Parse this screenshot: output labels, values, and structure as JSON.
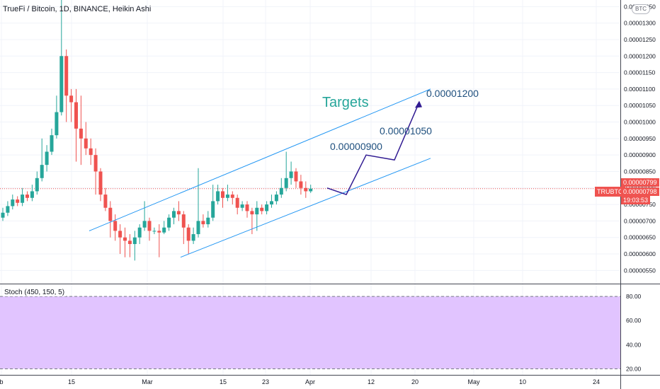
{
  "header": {
    "title": "TrueFi / Bitcoin, 1D, BINANCE, Heikin Ashi"
  },
  "currency_badge": "BTC",
  "stoch_label": "Stoch (450, 150, 5)",
  "price_panel": {
    "symbol": "TRUBTC",
    "price_upper": "0.00000799",
    "price_lower": "0.00000798",
    "countdown": "19:03:53"
  },
  "annotations": {
    "targets_label": "Targets",
    "target1": "0.00000900",
    "target2": "0.00001050",
    "target3": "0.00001200"
  },
  "colors": {
    "up": "#26a69a",
    "down": "#ef5350",
    "channel": "#2196f3",
    "projection": "#311b92",
    "targets_text": "#26a69a",
    "target_numbers": "#1e4f7e",
    "stoch_band": "#e1c4ff"
  },
  "chart_data": [
    {
      "type": "candlestick",
      "style": "Heikin Ashi",
      "interval": "1D",
      "x_labels": [
        "b",
        "15",
        "Mar",
        "15",
        "23",
        "Apr",
        "12",
        "20",
        "May",
        "10",
        "24"
      ],
      "y_ticks": [
        "0.00000550",
        "0.00000600",
        "0.00000650",
        "0.00000700",
        "0.00000750",
        "0.00000800",
        "0.00000850",
        "0.00000900",
        "0.00000950",
        "0.00001000",
        "0.00001050",
        "0.00001100",
        "0.00001150",
        "0.00001200",
        "0.00001250",
        "0.00001300",
        "0.00001350"
      ],
      "ylim": [
        5.1e-06,
        1.37e-05
      ],
      "candles": [
        [
          7.1e-06,
          7.25e-06,
          7e-06,
          7.4e-06
        ],
        [
          7.25e-06,
          7.45e-06,
          7.15e-06,
          7.6e-06
        ],
        [
          7.45e-06,
          7.65e-06,
          7.35e-06,
          7.8e-06
        ],
        [
          7.65e-06,
          7.55e-06,
          7.45e-06,
          7.75e-06
        ],
        [
          7.55e-06,
          7.8e-06,
          7.45e-06,
          8e-06
        ],
        [
          7.8e-06,
          7.7e-06,
          7.6e-06,
          7.9e-06
        ],
        [
          7.7e-06,
          7.9e-06,
          7.6e-06,
          8.1e-06
        ],
        [
          7.9e-06,
          8.3e-06,
          7.8e-06,
          8.5e-06
        ],
        [
          8.3e-06,
          8.7e-06,
          8.2e-06,
          9.5e-06
        ],
        [
          8.7e-06,
          9.1e-06,
          8.5e-06,
          9.3e-06
        ],
        [
          9.1e-06,
          9.6e-06,
          9e-06,
          9.8e-06
        ],
        [
          9.6e-06,
          1.03e-05,
          9.5e-06,
          1.08e-05
        ],
        [
          1.03e-05,
          1.2e-05,
          1.02e-05,
          1.37e-05
        ],
        [
          1.2e-05,
          1.08e-05,
          1e-05,
          1.22e-05
        ],
        [
          1.08e-05,
          1.06e-05,
          1e-05,
          1.1e-05
        ],
        [
          1.06e-05,
          9.8e-06,
          8.8e-06,
          1.1e-05
        ],
        [
          9.8e-06,
          9.5e-06,
          8.7e-06,
          1.08e-05
        ],
        [
          9.5e-06,
          9.2e-06,
          9e-06,
          1e-05
        ],
        [
          9.2e-06,
          9e-06,
          8.7e-06,
          9.5e-06
        ],
        [
          9e-06,
          8.5e-06,
          7.8e-06,
          9.2e-06
        ],
        [
          8.5e-06,
          7.8e-06,
          7.6e-06,
          8.6e-06
        ],
        [
          7.8e-06,
          7.4e-06,
          7.3e-06,
          8e-06
        ],
        [
          7.4e-06,
          7e-06,
          6.5e-06,
          7.6e-06
        ],
        [
          7e-06,
          6.7e-06,
          6.4e-06,
          7.2e-06
        ],
        [
          6.7e-06,
          6.5e-06,
          6e-06,
          6.9e-06
        ],
        [
          6.5e-06,
          6.4e-06,
          5.9e-06,
          6.8e-06
        ],
        [
          6.4e-06,
          6.3e-06,
          5.9e-06,
          6.6e-06
        ],
        [
          6.3e-06,
          6.5e-06,
          5.8e-06,
          6.7e-06
        ],
        [
          6.5e-06,
          6.8e-06,
          6.3e-06,
          6.9e-06
        ],
        [
          6.8e-06,
          7e-06,
          6.7e-06,
          7.6e-06
        ],
        [
          7e-06,
          6.7e-06,
          6.4e-06,
          7.1e-06
        ],
        [
          6.7e-06,
          6.7e-06,
          6.6e-06,
          6.8e-06
        ],
        [
          6.7e-06,
          6.65e-06,
          5.9e-06,
          6.9e-06
        ],
        [
          6.65e-06,
          6.8e-06,
          6.6e-06,
          7e-06
        ],
        [
          6.8e-06,
          7.1e-06,
          6.7e-06,
          7.2e-06
        ],
        [
          7.1e-06,
          7.3e-06,
          6.9e-06,
          7.4e-06
        ],
        [
          7.3e-06,
          7.2e-06,
          7e-06,
          7.6e-06
        ],
        [
          7.2e-06,
          6.8e-06,
          6.3e-06,
          7.3e-06
        ],
        [
          6.8e-06,
          6.4e-06,
          6e-06,
          6.9e-06
        ],
        [
          6.4e-06,
          6.6e-06,
          6.3e-06,
          6.8e-06
        ],
        [
          6.6e-06,
          7e-06,
          6.5e-06,
          8.6e-06
        ],
        [
          7e-06,
          6.9e-06,
          6.8e-06,
          7.2e-06
        ],
        [
          6.9e-06,
          7.1e-06,
          6.8e-06,
          7.3e-06
        ],
        [
          7.1e-06,
          7.6e-06,
          7e-06,
          8.1e-06
        ],
        [
          7.6e-06,
          7.9e-06,
          7.5e-06,
          8.1e-06
        ],
        [
          7.9e-06,
          7.7e-06,
          7.4e-06,
          8e-06
        ],
        [
          7.7e-06,
          7.8e-06,
          7.6e-06,
          8.1e-06
        ],
        [
          7.8e-06,
          7.7e-06,
          7.5e-06,
          7.9e-06
        ],
        [
          7.7e-06,
          7.4e-06,
          7.2e-06,
          7.8e-06
        ],
        [
          7.4e-06,
          7.5e-06,
          7.3e-06,
          7.6e-06
        ],
        [
          7.5e-06,
          7.3e-06,
          7.1e-06,
          7.6e-06
        ],
        [
          7.3e-06,
          7.2e-06,
          6.6e-06,
          7.4e-06
        ],
        [
          7.2e-06,
          7.4e-06,
          6.7e-06,
          7.6e-06
        ],
        [
          7.4e-06,
          7.3e-06,
          7.2e-06,
          7.5e-06
        ],
        [
          7.3e-06,
          7.5e-06,
          7.2e-06,
          7.6e-06
        ],
        [
          7.5e-06,
          7.6e-06,
          7.4e-06,
          7.8e-06
        ],
        [
          7.6e-06,
          7.8e-06,
          7.5e-06,
          7.9e-06
        ],
        [
          7.8e-06,
          8e-06,
          7.7e-06,
          8.3e-06
        ],
        [
          8e-06,
          8.3e-06,
          7.9e-06,
          9.1e-06
        ],
        [
          8.3e-06,
          8.5e-06,
          8.1e-06,
          8.8e-06
        ],
        [
          8.5e-06,
          8.2e-06,
          8e-06,
          8.6e-06
        ],
        [
          8.2e-06,
          8e-06,
          7.8e-06,
          8.4e-06
        ],
        [
          8e-06,
          7.9e-06,
          7.7e-06,
          8.2e-06
        ],
        [
          7.9e-06,
          7.98e-06,
          7.85e-06,
          8.1e-06
        ]
      ],
      "channel_upper": [
        [
          6.7e-06,
          1.1e-05
        ]
      ],
      "channel_lower": [
        [
          5.9e-06,
          8.9e-06
        ]
      ],
      "projection_path": [
        8e-06,
        7.8e-06,
        9e-06,
        8.85e-06,
        1.06e-05
      ],
      "current_price": 7.98e-06
    },
    {
      "type": "stochastic",
      "levels": [
        "20.00",
        "40.00",
        "60.00",
        "80.00"
      ],
      "ylim": [
        15,
        90
      ],
      "band": [
        20,
        80
      ]
    }
  ]
}
